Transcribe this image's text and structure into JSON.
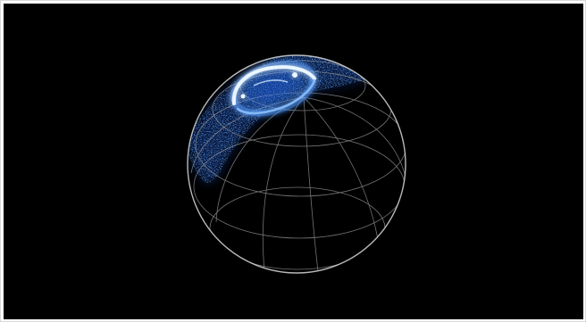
{
  "image": {
    "background_color": "#000000",
    "frame_color": "#ffffff",
    "grid_color": "#bfbfbf",
    "rim_color": "#d9d9d9",
    "aurora_colors": {
      "core": "#eaf6ff",
      "bright": "#3d8dff",
      "mid": "#1f5fe6",
      "haze": "#1a4fbf"
    }
  }
}
